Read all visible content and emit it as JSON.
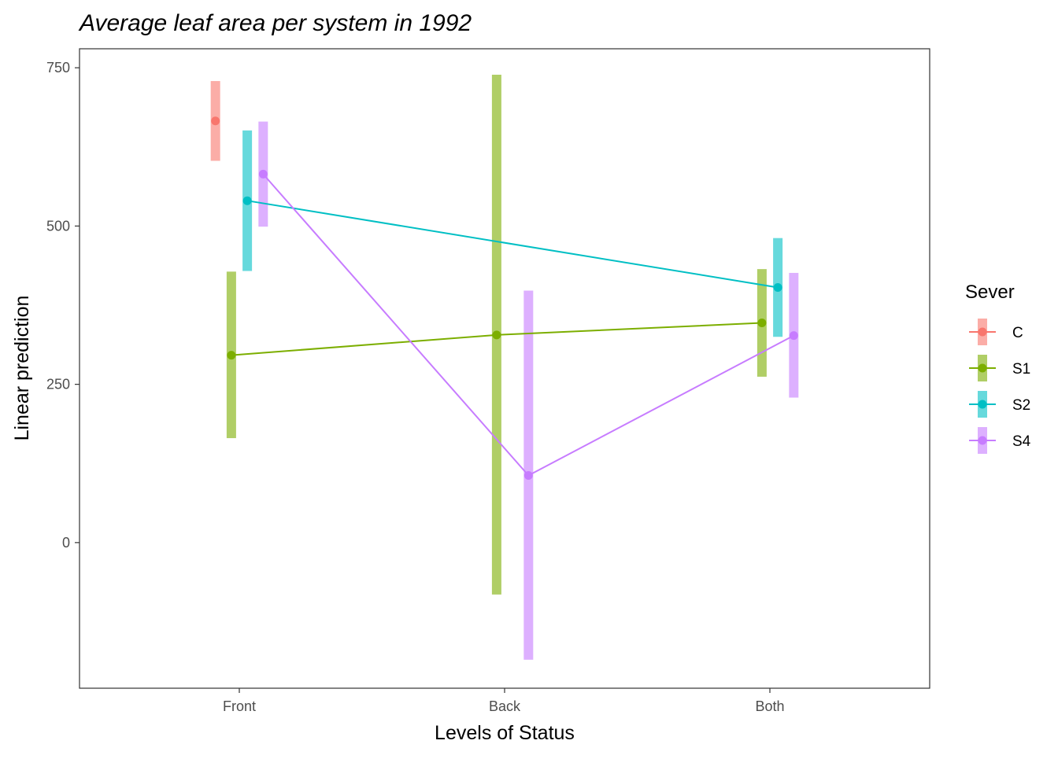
{
  "chart_data": {
    "type": "line",
    "title": "Average leaf area per system in 1992",
    "xlabel": "Levels of Status",
    "ylabel": "Linear prediction",
    "categories": [
      "Front",
      "Back",
      "Both"
    ],
    "ylim": [
      -230,
      780
    ],
    "yticks": [
      0,
      250,
      500,
      750
    ],
    "grid": false,
    "legend": {
      "title": "Sever",
      "position": "right"
    },
    "series": [
      {
        "name": "C",
        "color": "#F8766D",
        "points": [
          {
            "category": "Front",
            "y": 666,
            "lower": 603,
            "upper": 729
          }
        ]
      },
      {
        "name": "S1",
        "color": "#7CAE00",
        "points": [
          {
            "category": "Front",
            "y": 296,
            "lower": 165,
            "upper": 428
          },
          {
            "category": "Back",
            "y": 328,
            "lower": -82,
            "upper": 739
          },
          {
            "category": "Both",
            "y": 347,
            "lower": 262,
            "upper": 432
          }
        ]
      },
      {
        "name": "S2",
        "color": "#00BFC4",
        "points": [
          {
            "category": "Front",
            "y": 540,
            "lower": 429,
            "upper": 651
          },
          {
            "category": "Both",
            "y": 403,
            "lower": 325,
            "upper": 481
          }
        ]
      },
      {
        "name": "S4",
        "color": "#C77CFF",
        "points": [
          {
            "category": "Front",
            "y": 582,
            "lower": 499,
            "upper": 665
          },
          {
            "category": "Back",
            "y": 106,
            "lower": -185,
            "upper": 398
          },
          {
            "category": "Both",
            "y": 327,
            "lower": 229,
            "upper": 426
          }
        ]
      }
    ]
  }
}
